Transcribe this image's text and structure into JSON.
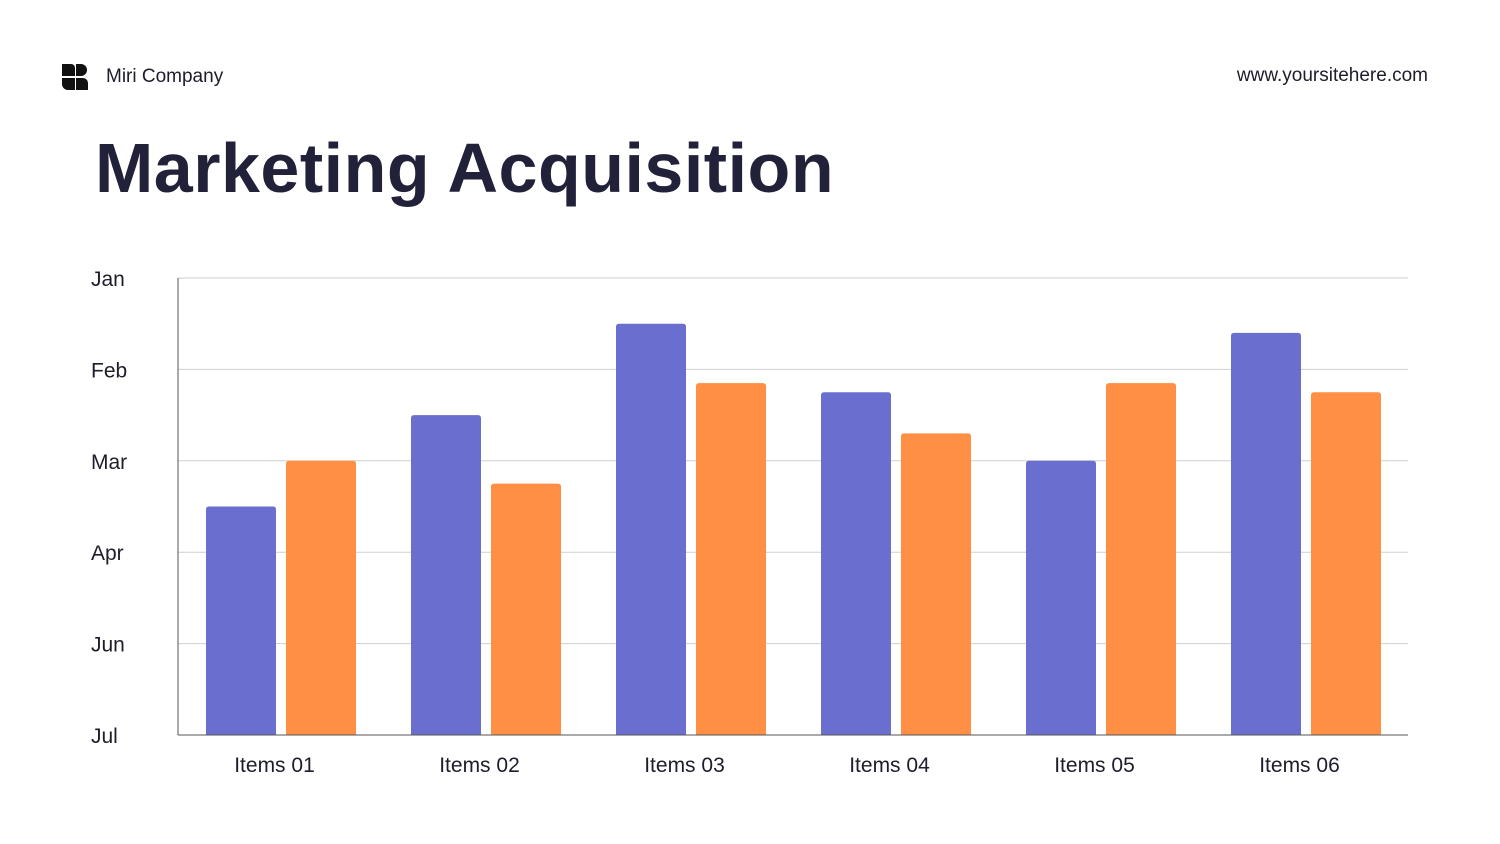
{
  "header": {
    "company": "Miri Company",
    "website": "www.yoursitehere.com",
    "logo_icon": "block-logo-icon"
  },
  "chart_data": {
    "type": "bar",
    "title": "Marketing Acquisition",
    "categories": [
      "Items 01",
      "Items 02",
      "Items 03",
      "Items 04",
      "Items 05",
      "Items 06"
    ],
    "y_tick_labels": [
      "Jul",
      "Jun",
      "Apr",
      "Mar",
      "Feb",
      "Jan"
    ],
    "ylim": [
      0,
      5
    ],
    "grid": true,
    "legend": "none",
    "series": [
      {
        "color": "#6a6fcf",
        "values": [
          2.5,
          3.5,
          4.5,
          3.75,
          3.0,
          4.4
        ]
      },
      {
        "color": "#ff8f45",
        "values": [
          3.0,
          2.75,
          3.85,
          3.3,
          3.85,
          3.75
        ]
      }
    ]
  }
}
